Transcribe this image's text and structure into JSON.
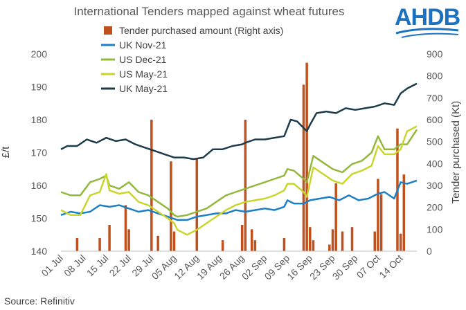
{
  "chart_data": {
    "type": "bar+line",
    "title": "International Tenders mapped against wheat futures",
    "ylabel_left": "£/t",
    "ylabel_right": "Tender purchased (Kt)",
    "ylim_left": [
      140,
      200
    ],
    "ylim_right": [
      0,
      900
    ],
    "yticks_left": [
      140,
      150,
      160,
      170,
      180,
      190,
      200
    ],
    "yticks_right": [
      0,
      100,
      200,
      300,
      400,
      500,
      600,
      700,
      800,
      900
    ],
    "x_range": [
      0,
      110
    ],
    "x_ticks": [
      {
        "label": "01 Jul",
        "x": 0
      },
      {
        "label": "08 Jul",
        "x": 7
      },
      {
        "label": "15 Jul",
        "x": 14
      },
      {
        "label": "22 Jul",
        "x": 21
      },
      {
        "label": "29 Jul",
        "x": 28
      },
      {
        "label": "05 Aug",
        "x": 35
      },
      {
        "label": "12 Aug",
        "x": 42
      },
      {
        "label": "19 Aug",
        "x": 49
      },
      {
        "label": "26 Aug",
        "x": 56
      },
      {
        "label": "02 Sep",
        "x": 63
      },
      {
        "label": "09 Sep",
        "x": 70
      },
      {
        "label": "16 Sep",
        "x": 77
      },
      {
        "label": "23 Sep",
        "x": 84
      },
      {
        "label": "30 Sep",
        "x": 91
      },
      {
        "label": "07 Oct",
        "x": 98
      },
      {
        "label": "14 Oct",
        "x": 105
      }
    ],
    "bars": {
      "name": "Tender purchased amount (Right axis)",
      "color": "#c0501c",
      "axis": "right",
      "x": [
        5,
        12,
        15,
        20,
        21,
        28,
        30,
        34,
        35,
        42,
        50,
        56,
        57,
        59,
        60,
        69,
        75,
        76,
        77,
        78,
        83,
        84,
        85,
        87,
        90,
        97,
        98,
        99,
        104,
        105,
        106
      ],
      "values": [
        60,
        60,
        120,
        210,
        100,
        600,
        70,
        410,
        90,
        420,
        50,
        120,
        600,
        100,
        50,
        60,
        760,
        860,
        110,
        50,
        30,
        100,
        310,
        90,
        110,
        90,
        330,
        260,
        560,
        80,
        350
      ]
    },
    "series": [
      {
        "name": "UK Nov-21",
        "color": "#1a7fc6",
        "axis": "left",
        "x": [
          0,
          3,
          6,
          9,
          12,
          15,
          18,
          21,
          24,
          27,
          30,
          33,
          36,
          39,
          42,
          45,
          48,
          51,
          54,
          57,
          60,
          63,
          66,
          69,
          70,
          72,
          75,
          77,
          80,
          83,
          86,
          89,
          92,
          95,
          98,
          100,
          103,
          105,
          107,
          110
        ],
        "values": [
          151,
          152,
          151.5,
          152,
          154,
          153.5,
          154,
          153,
          152,
          152.5,
          151.5,
          150.5,
          149.5,
          149.5,
          150.5,
          151,
          151.5,
          151.5,
          152.5,
          152,
          152.5,
          153,
          152.5,
          153.5,
          155.5,
          154.5,
          154.5,
          155.5,
          156,
          156.5,
          155.5,
          157,
          155.5,
          156,
          157.5,
          158,
          156,
          161,
          160.5,
          161.5
        ]
      },
      {
        "name": "US Dec-21",
        "color": "#92b83c",
        "axis": "left",
        "x": [
          0,
          3,
          6,
          9,
          12,
          14,
          15,
          18,
          21,
          24,
          27,
          30,
          33,
          35,
          36,
          39,
          42,
          45,
          48,
          51,
          54,
          57,
          60,
          63,
          66,
          69,
          70,
          72,
          75,
          76,
          78,
          81,
          84,
          87,
          90,
          93,
          96,
          98,
          100,
          103,
          105,
          107,
          110
        ],
        "values": [
          158,
          157,
          157,
          161,
          162,
          163,
          160,
          159,
          161,
          158,
          157,
          155,
          153,
          151,
          150.5,
          151,
          152,
          153,
          155,
          157,
          158,
          159,
          160,
          161,
          162,
          163,
          165,
          164.5,
          162,
          161,
          169,
          167,
          165,
          164,
          166.5,
          167.5,
          170,
          175,
          171,
          171,
          172.5,
          172.5,
          177
        ]
      },
      {
        "name": "US May-21",
        "color": "#c8d62c",
        "axis": "left",
        "x": [
          0,
          3,
          6,
          9,
          12,
          14,
          15,
          18,
          21,
          24,
          27,
          30,
          33,
          35,
          36,
          39,
          42,
          45,
          48,
          51,
          54,
          57,
          60,
          63,
          66,
          69,
          70,
          72,
          75,
          76,
          78,
          81,
          84,
          87,
          90,
          93,
          96,
          98,
          100,
          103,
          105,
          107,
          110
        ],
        "values": [
          152.5,
          151,
          151,
          157,
          158,
          163.5,
          158.5,
          157.5,
          158,
          155,
          154,
          152,
          150,
          148.5,
          146.5,
          145,
          146.5,
          148.5,
          150.5,
          152.5,
          154,
          155,
          155.5,
          156,
          157,
          158.5,
          160.5,
          160.5,
          158,
          156.5,
          165.5,
          163.5,
          161.5,
          160.5,
          163.5,
          164.5,
          166,
          172,
          169.5,
          169.5,
          171,
          176.5,
          178
        ]
      },
      {
        "name": "UK May-21",
        "color": "#1d3b4a",
        "axis": "left",
        "x": [
          0,
          2,
          5,
          8,
          11,
          14,
          17,
          20,
          23,
          26,
          29,
          32,
          35,
          38,
          41,
          44,
          47,
          50,
          53,
          56,
          57,
          60,
          63,
          66,
          69,
          71,
          73,
          76,
          77,
          79,
          82,
          85,
          88,
          91,
          94,
          97,
          100,
          103,
          105,
          107,
          109,
          110
        ],
        "values": [
          171,
          172,
          172,
          174,
          173,
          174.5,
          173.5,
          174,
          172.5,
          171.5,
          170.5,
          169.5,
          168.5,
          168.5,
          168,
          168.5,
          171,
          171,
          172,
          172.5,
          173,
          174,
          174,
          174.5,
          175,
          180,
          179.5,
          176.5,
          178.5,
          182,
          182.5,
          182,
          183.5,
          183,
          183.5,
          184,
          185,
          184.5,
          188,
          189.5,
          190.5,
          191
        ]
      }
    ],
    "source": "Source: Refinitiv",
    "logo": "AHDB"
  }
}
